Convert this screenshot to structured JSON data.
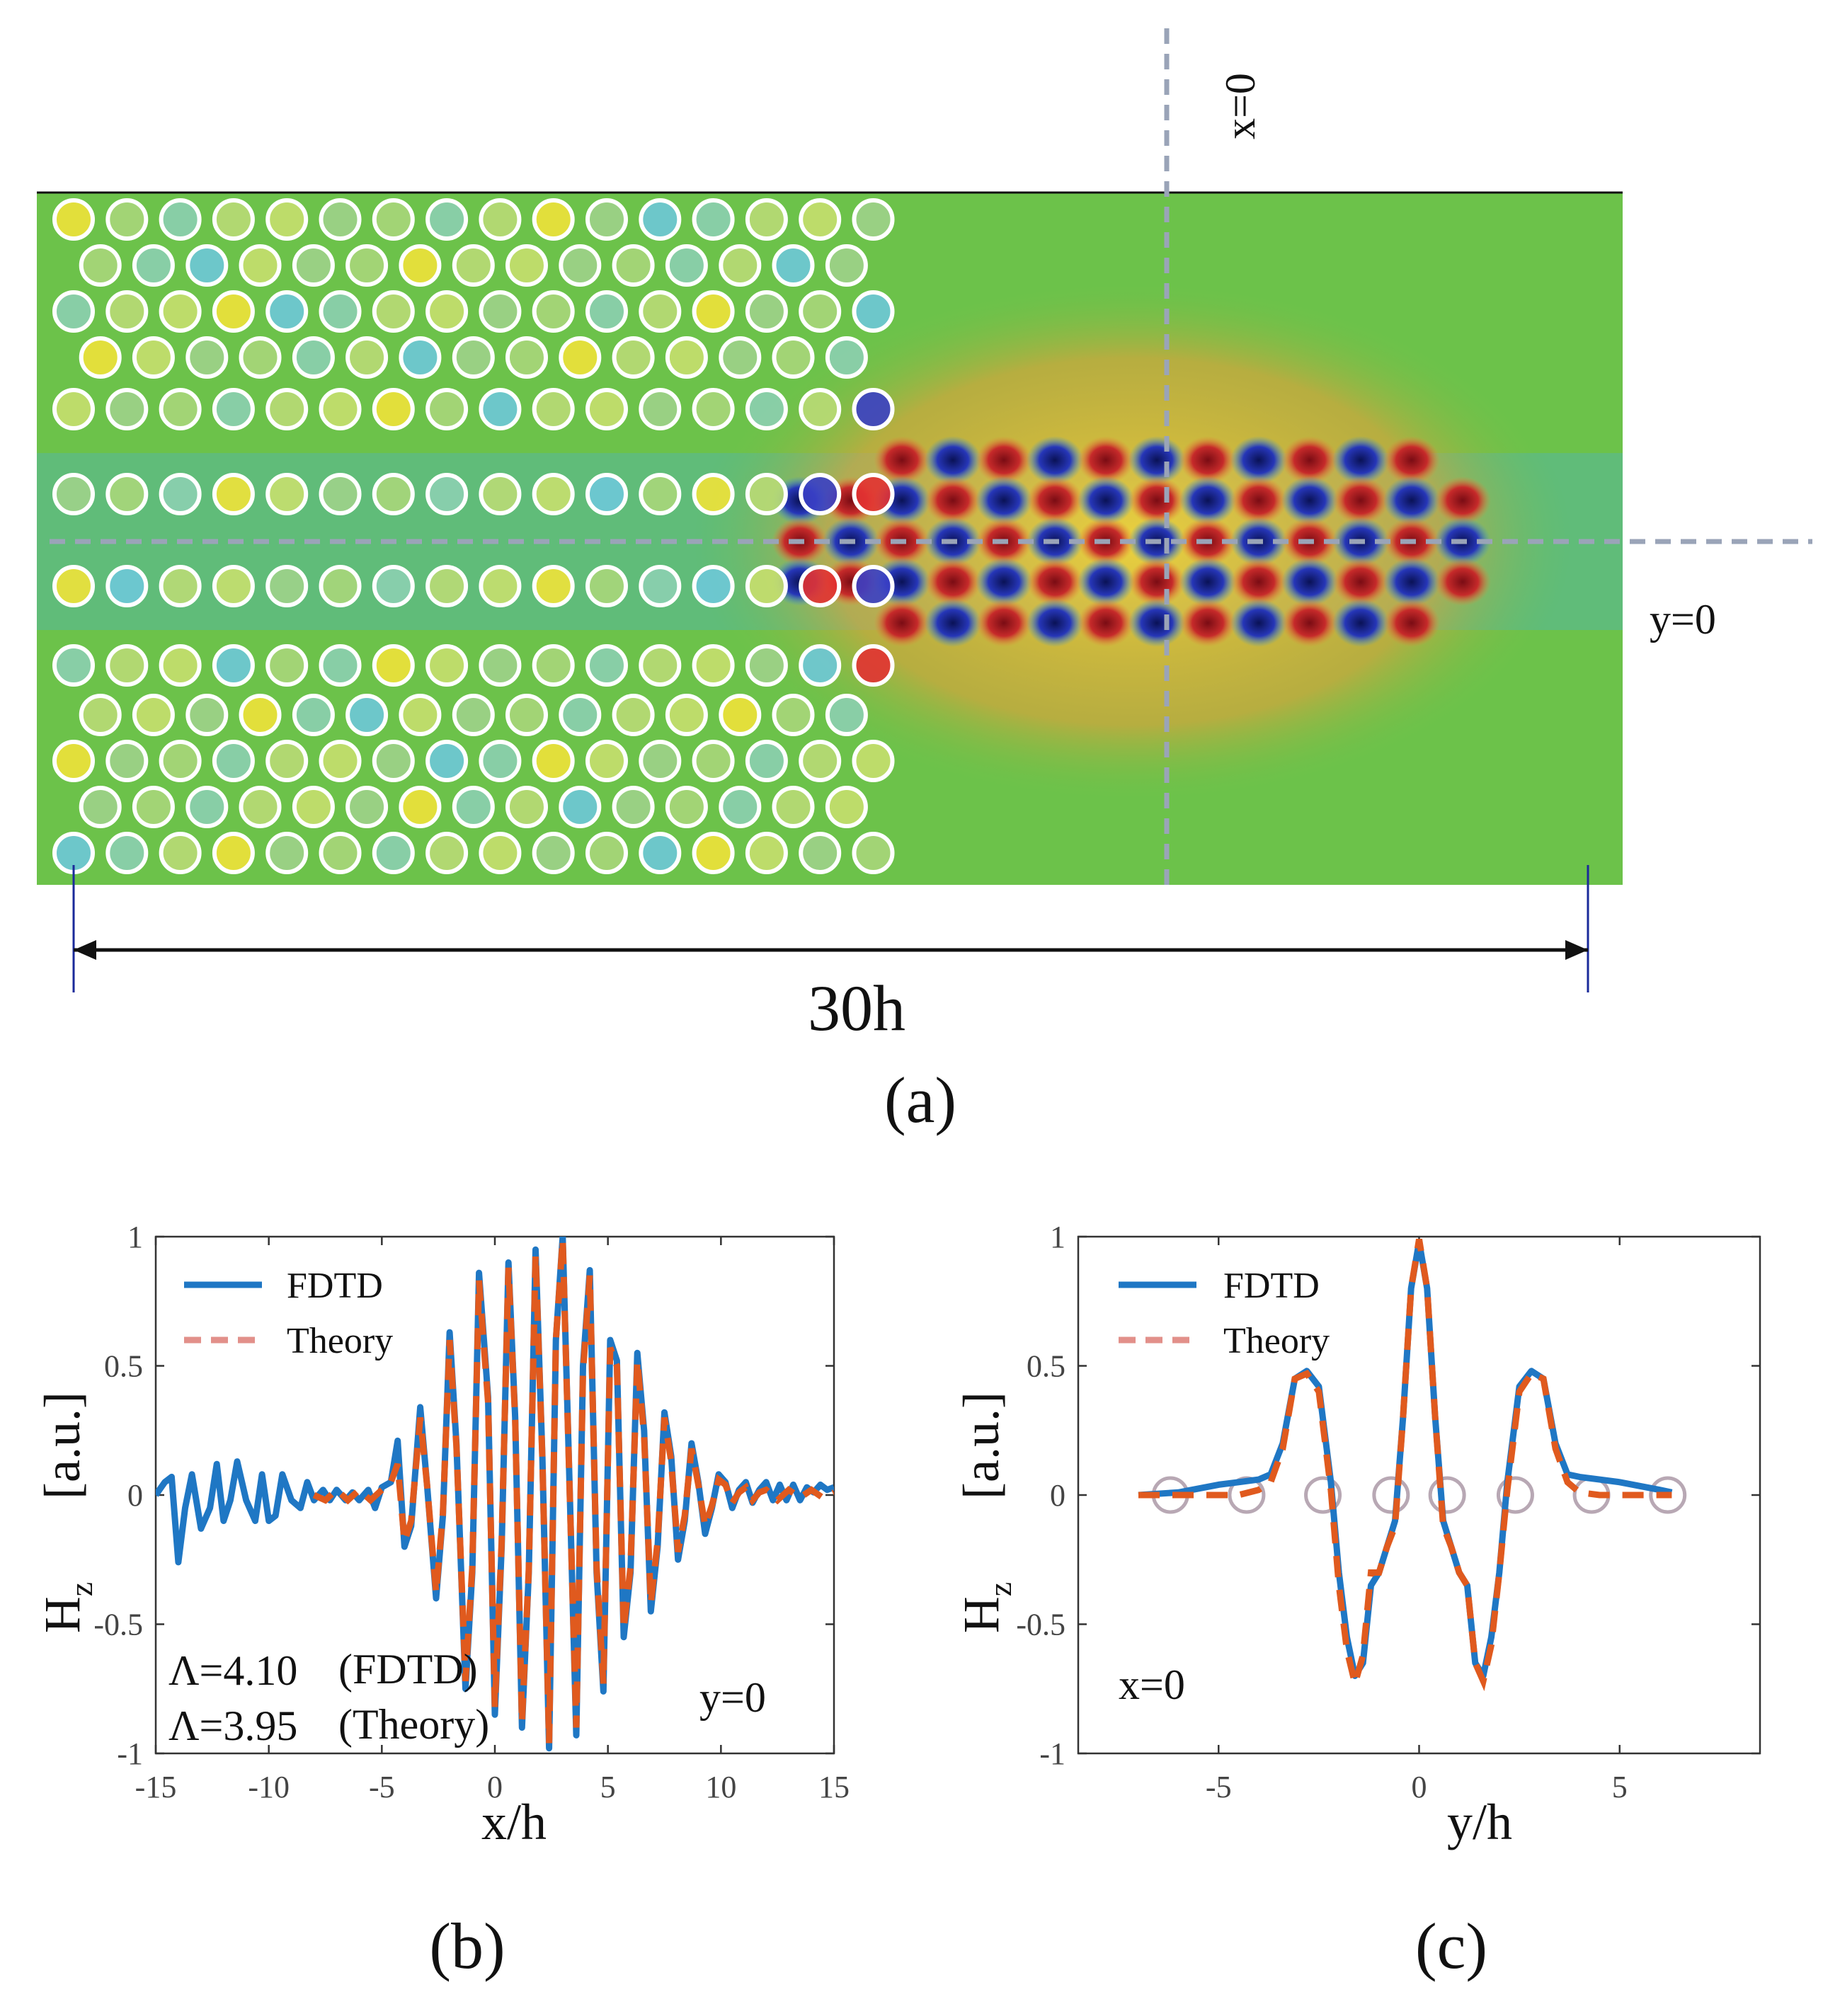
{
  "figure": {
    "panel_a": {
      "x_marker_label": "x=0",
      "y_marker_label": "y=0",
      "length_label": "30h",
      "caption": "(a)"
    },
    "panel_b": {
      "caption": "(b)"
    },
    "panel_c": {
      "caption": "(c)"
    }
  },
  "colors": {
    "fdtd": "#1f77c4",
    "theory": "#e05a1e",
    "theory_legend": "#e2908a",
    "field_background": "#6cc24a",
    "marker_line": "#9aa4b8",
    "hole_outline": "#ffffff",
    "rod_marker": "#b8a8b4"
  },
  "chart_data": [
    {
      "id": "b",
      "type": "line",
      "xlabel": "x/h",
      "ylabel": "H",
      "ylabel_sub": "z",
      "ylabel_unit": "[a.u.]",
      "xlim": [
        -15,
        15
      ],
      "ylim": [
        -1,
        1
      ],
      "xticks": [
        -15,
        -10,
        -5,
        0,
        5,
        10,
        15
      ],
      "xtick_labels": [
        "-15",
        "-10",
        "-5",
        "0",
        "5",
        "10",
        "15"
      ],
      "yticks": [
        -1,
        -0.5,
        0,
        0.5,
        1
      ],
      "ytick_labels": [
        "-1",
        "-0.5",
        "0",
        "0.5",
        "1"
      ],
      "legend": [
        "FDTD",
        "Theory"
      ],
      "annotations": [
        "Λ=4.10",
        "(FDTD)",
        "Λ=3.95",
        "(Theory)",
        "y=0"
      ],
      "series": [
        {
          "name": "FDTD",
          "x": [
            -15,
            -14.6,
            -14.3,
            -14,
            -13.7,
            -13.4,
            -13,
            -12.6,
            -12.3,
            -12,
            -11.7,
            -11.4,
            -11,
            -10.6,
            -10.3,
            -10,
            -9.7,
            -9.4,
            -9,
            -8.6,
            -8.3,
            -8,
            -7.6,
            -7.3,
            -7,
            -6.6,
            -6.3,
            -6,
            -5.6,
            -5.3,
            -5,
            -4.6,
            -4.3,
            -4,
            -3.7,
            -3.3,
            -3,
            -2.6,
            -2.3,
            -2,
            -1.7,
            -1.3,
            -1,
            -0.7,
            -0.3,
            0,
            0.3,
            0.6,
            0.9,
            1.2,
            1.5,
            1.8,
            2.1,
            2.4,
            2.7,
            3,
            3.3,
            3.6,
            3.9,
            4.2,
            4.5,
            4.8,
            5.1,
            5.4,
            5.7,
            6,
            6.3,
            6.6,
            6.9,
            7.2,
            7.5,
            7.8,
            8.1,
            8.4,
            8.7,
            9,
            9.3,
            9.6,
            9.9,
            10.2,
            10.5,
            10.8,
            11.1,
            11.4,
            11.7,
            12,
            12.3,
            12.6,
            12.9,
            13.2,
            13.5,
            13.8,
            14.1,
            14.4,
            14.7,
            15
          ],
          "values": [
            0,
            0.05,
            0.07,
            -0.26,
            -0.05,
            0.08,
            -0.13,
            -0.05,
            0.12,
            -0.1,
            -0.02,
            0.13,
            -0.02,
            -0.1,
            0.08,
            -0.1,
            -0.08,
            0.08,
            -0.02,
            -0.05,
            0.05,
            -0.02,
            0.02,
            -0.02,
            0.02,
            -0.02,
            0.01,
            -0.02,
            0.02,
            -0.05,
            0.03,
            0.05,
            0.21,
            -0.2,
            -0.12,
            0.34,
            0.04,
            -0.4,
            -0.08,
            0.63,
            0.2,
            -0.75,
            -0.3,
            0.86,
            0.38,
            -0.85,
            -0.2,
            0.9,
            0.3,
            -0.9,
            -0.3,
            0.95,
            0.15,
            -0.98,
            0.6,
            1.0,
            0.05,
            -0.93,
            0.5,
            0.87,
            -0.3,
            -0.76,
            0.6,
            0.52,
            -0.55,
            -0.3,
            0.55,
            0.25,
            -0.45,
            -0.2,
            0.32,
            0.15,
            -0.25,
            -0.1,
            0.2,
            0.05,
            -0.15,
            -0.05,
            0.08,
            0.05,
            -0.05,
            0.02,
            0.05,
            -0.03,
            0.02,
            0.05,
            -0.02,
            0.04,
            -0.02,
            0.04,
            -0.02,
            0.03,
            0.01,
            0.04,
            0.02,
            0.03
          ]
        },
        {
          "name": "Theory",
          "x": [
            -8,
            -7.5,
            -7,
            -6.5,
            -6,
            -5.5,
            -5,
            -4.6,
            -4.3,
            -4,
            -3.7,
            -3.3,
            -3,
            -2.6,
            -2.3,
            -2,
            -1.7,
            -1.3,
            -1,
            -0.7,
            -0.3,
            0,
            0.3,
            0.6,
            0.9,
            1.2,
            1.5,
            1.8,
            2.1,
            2.4,
            2.7,
            3,
            3.3,
            3.6,
            3.9,
            4.2,
            4.5,
            4.8,
            5.1,
            5.4,
            5.7,
            6,
            6.3,
            6.6,
            6.9,
            7.2,
            7.5,
            7.8,
            8.1,
            8.4,
            8.7,
            9,
            9.3,
            9.6,
            9.9,
            10.2,
            10.5,
            10.8,
            11.1,
            11.4,
            11.7,
            12,
            12.5,
            13,
            13.5,
            14,
            14.5,
            15
          ],
          "values": [
            0,
            -0.02,
            0.02,
            -0.02,
            0.02,
            -0.02,
            0.02,
            0.05,
            0.12,
            -0.18,
            -0.1,
            0.3,
            0.04,
            -0.38,
            -0.07,
            0.6,
            0.19,
            -0.72,
            -0.28,
            0.83,
            0.36,
            -0.82,
            -0.18,
            0.88,
            0.29,
            -0.88,
            -0.29,
            0.93,
            0.14,
            -0.96,
            0.6,
            0.99,
            0.04,
            -0.9,
            0.48,
            0.85,
            -0.28,
            -0.73,
            0.57,
            0.5,
            -0.52,
            -0.28,
            0.52,
            0.23,
            -0.42,
            -0.18,
            0.3,
            0.13,
            -0.22,
            -0.08,
            0.18,
            0.04,
            -0.12,
            -0.04,
            0.06,
            0.04,
            -0.03,
            0.01,
            0.03,
            -0.02,
            0.01,
            0.02,
            -0.02,
            0.02,
            -0.01,
            0.02,
            -0.01,
            0.01
          ]
        }
      ]
    },
    {
      "id": "c",
      "type": "line",
      "xlabel": "y/h",
      "ylabel": "H",
      "ylabel_sub": "z",
      "ylabel_unit": "[a.u.]",
      "xlim": [
        -8.5,
        8.5
      ],
      "ylim": [
        -1,
        1
      ],
      "xticks": [
        -5,
        0,
        5
      ],
      "xtick_labels": [
        "-5",
        "0",
        "5"
      ],
      "yticks": [
        -1,
        -0.5,
        0,
        0.5,
        1
      ],
      "ytick_labels": [
        "-1",
        "-0.5",
        "0",
        "0.5",
        "1"
      ],
      "legend": [
        "FDTD",
        "Theory"
      ],
      "annotations": [
        "x=0"
      ],
      "rod_positions": [
        -6.2,
        -4.3,
        -2.4,
        -0.7,
        0.7,
        2.4,
        4.3,
        6.2
      ],
      "series": [
        {
          "name": "FDTD",
          "x": [
            -7,
            -6,
            -5,
            -4.5,
            -4,
            -3.7,
            -3.4,
            -3.1,
            -2.8,
            -2.5,
            -2.2,
            -2,
            -1.8,
            -1.6,
            -1.4,
            -1.2,
            -1,
            -0.8,
            -0.6,
            -0.4,
            -0.2,
            0,
            0.2,
            0.4,
            0.6,
            0.8,
            1,
            1.2,
            1.4,
            1.6,
            1.8,
            2,
            2.2,
            2.5,
            2.8,
            3.1,
            3.4,
            3.7,
            4,
            4.5,
            5,
            6,
            6.3
          ],
          "values": [
            0,
            0.01,
            0.04,
            0.05,
            0.06,
            0.08,
            0.2,
            0.45,
            0.48,
            0.42,
            0.05,
            -0.3,
            -0.55,
            -0.7,
            -0.65,
            -0.35,
            -0.3,
            -0.2,
            -0.1,
            0.3,
            0.8,
            0.98,
            0.8,
            0.3,
            -0.1,
            -0.2,
            -0.3,
            -0.35,
            -0.65,
            -0.7,
            -0.55,
            -0.3,
            0.05,
            0.42,
            0.48,
            0.45,
            0.2,
            0.08,
            0.07,
            0.06,
            0.05,
            0.02,
            0.01
          ]
        },
        {
          "name": "Theory",
          "x": [
            -7,
            -6,
            -5,
            -4.5,
            -4,
            -3.7,
            -3.4,
            -3.1,
            -2.8,
            -2.5,
            -2.2,
            -2,
            -1.8,
            -1.6,
            -1.4,
            -1.2,
            -1,
            -0.8,
            -0.6,
            -0.4,
            -0.2,
            0,
            0.2,
            0.4,
            0.6,
            0.8,
            1,
            1.2,
            1.4,
            1.6,
            1.8,
            2,
            2.2,
            2.5,
            2.8,
            3.1,
            3.4,
            3.7,
            4,
            4.5,
            5,
            6,
            6.3
          ],
          "values": [
            0,
            0,
            0,
            0,
            0.02,
            0.05,
            0.18,
            0.45,
            0.47,
            0.4,
            0.02,
            -0.35,
            -0.6,
            -0.73,
            -0.62,
            -0.3,
            -0.3,
            -0.2,
            -0.12,
            0.3,
            0.8,
            0.99,
            0.8,
            0.3,
            -0.12,
            -0.2,
            -0.3,
            -0.35,
            -0.65,
            -0.72,
            -0.58,
            -0.3,
            0.02,
            0.4,
            0.47,
            0.45,
            0.18,
            0.05,
            0.01,
            0,
            0,
            0,
            0
          ]
        }
      ]
    }
  ]
}
